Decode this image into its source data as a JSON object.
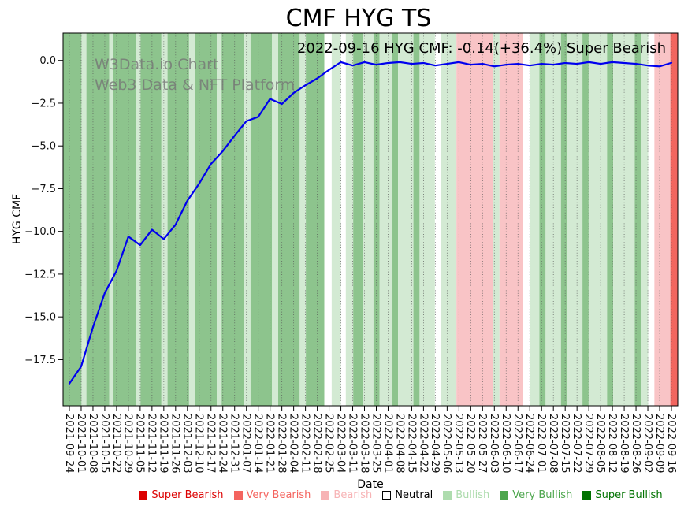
{
  "title": "CMF HYG TS",
  "watermark": {
    "line1": "W3Data.io Chart",
    "line2": "Web3 Data & NFT Platform"
  },
  "annotation": "2022-09-16 HYG CMF: -0.14(+36.4%) Super Bearish",
  "chart_data": {
    "type": "line",
    "title": "CMF HYG TS",
    "xlabel": "Date",
    "ylabel": "HYG CMF",
    "series_name": "HYG CMF",
    "line_color": "#0000ee",
    "grid": "vertical-dotted",
    "legend_position": "bottom",
    "ylim": [
      -20.2,
      1.6
    ],
    "yticks": [
      0.0,
      -2.5,
      -5.0,
      -7.5,
      -10.0,
      -12.5,
      -15.0,
      -17.5
    ],
    "ytick_labels": [
      "0.0",
      "−2.5",
      "−5.0",
      "−7.5",
      "−10.0",
      "−12.5",
      "−15.0",
      "−17.5"
    ],
    "x": [
      "2021-09-24",
      "2021-10-01",
      "2021-10-08",
      "2021-10-15",
      "2021-10-22",
      "2021-10-29",
      "2021-11-05",
      "2021-11-12",
      "2021-11-19",
      "2021-11-26",
      "2021-12-03",
      "2021-12-10",
      "2021-12-17",
      "2021-12-24",
      "2021-12-31",
      "2022-01-07",
      "2022-01-14",
      "2022-01-21",
      "2022-01-28",
      "2022-02-04",
      "2022-02-11",
      "2022-02-18",
      "2022-02-25",
      "2022-03-04",
      "2022-03-11",
      "2022-03-18",
      "2022-03-25",
      "2022-04-01",
      "2022-04-08",
      "2022-04-15",
      "2022-04-22",
      "2022-04-29",
      "2022-05-06",
      "2022-05-13",
      "2022-05-20",
      "2022-05-27",
      "2022-06-03",
      "2022-06-10",
      "2022-06-17",
      "2022-06-24",
      "2022-07-01",
      "2022-07-08",
      "2022-07-15",
      "2022-07-22",
      "2022-07-29",
      "2022-08-05",
      "2022-08-12",
      "2022-08-19",
      "2022-08-26",
      "2022-09-02",
      "2022-09-09",
      "2022-09-16"
    ],
    "values": [
      -18.9,
      -17.9,
      -15.6,
      -13.6,
      -12.3,
      -10.3,
      -10.8,
      -9.9,
      -10.45,
      -9.6,
      -8.2,
      -7.2,
      -6.05,
      -5.3,
      -4.4,
      -3.55,
      -3.3,
      -2.25,
      -2.55,
      -1.9,
      -1.45,
      -1.05,
      -0.55,
      -0.1,
      -0.3,
      -0.1,
      -0.25,
      -0.15,
      -0.1,
      -0.2,
      -0.15,
      -0.3,
      -0.2,
      -0.1,
      -0.25,
      -0.2,
      -0.35,
      -0.25,
      -0.2,
      -0.3,
      -0.2,
      -0.25,
      -0.15,
      -0.2,
      -0.1,
      -0.2,
      -0.1,
      -0.15,
      -0.2,
      -0.3,
      -0.35,
      -0.14
    ],
    "band_colors": {
      "super_bearish": "#e01e14",
      "very_bearish": "#f2655f",
      "bearish": "#f9c4c6",
      "neutral": "#ffffff",
      "bullish": "#d3ead3",
      "very_bullish": "#8dc48d",
      "super_bullish": "#2e8b2e"
    },
    "background_bands": [
      [
        0.0,
        0.03,
        "very_bullish"
      ],
      [
        0.03,
        0.038,
        "bullish"
      ],
      [
        0.038,
        0.075,
        "very_bullish"
      ],
      [
        0.075,
        0.082,
        "bullish"
      ],
      [
        0.082,
        0.118,
        "very_bullish"
      ],
      [
        0.118,
        0.126,
        "bullish"
      ],
      [
        0.126,
        0.16,
        "very_bullish"
      ],
      [
        0.16,
        0.17,
        "bullish"
      ],
      [
        0.17,
        0.205,
        "very_bullish"
      ],
      [
        0.205,
        0.215,
        "bullish"
      ],
      [
        0.215,
        0.25,
        "very_bullish"
      ],
      [
        0.25,
        0.258,
        "bullish"
      ],
      [
        0.258,
        0.295,
        "very_bullish"
      ],
      [
        0.295,
        0.305,
        "bullish"
      ],
      [
        0.305,
        0.34,
        "very_bullish"
      ],
      [
        0.34,
        0.35,
        "bullish"
      ],
      [
        0.35,
        0.385,
        "very_bullish"
      ],
      [
        0.385,
        0.395,
        "bullish"
      ],
      [
        0.395,
        0.425,
        "very_bullish"
      ],
      [
        0.425,
        0.437,
        "neutral"
      ],
      [
        0.437,
        0.452,
        "bullish"
      ],
      [
        0.452,
        0.46,
        "neutral"
      ],
      [
        0.46,
        0.472,
        "bullish"
      ],
      [
        0.472,
        0.488,
        "very_bullish"
      ],
      [
        0.488,
        0.505,
        "bullish"
      ],
      [
        0.505,
        0.515,
        "very_bullish"
      ],
      [
        0.515,
        0.535,
        "bullish"
      ],
      [
        0.535,
        0.545,
        "very_bullish"
      ],
      [
        0.545,
        0.57,
        "bullish"
      ],
      [
        0.57,
        0.58,
        "very_bullish"
      ],
      [
        0.58,
        0.605,
        "bullish"
      ],
      [
        0.605,
        0.615,
        "neutral"
      ],
      [
        0.615,
        0.64,
        "bullish"
      ],
      [
        0.64,
        0.7,
        "bearish"
      ],
      [
        0.7,
        0.71,
        "bullish"
      ],
      [
        0.71,
        0.748,
        "bearish"
      ],
      [
        0.748,
        0.76,
        "neutral"
      ],
      [
        0.76,
        0.775,
        "bullish"
      ],
      [
        0.775,
        0.785,
        "very_bullish"
      ],
      [
        0.785,
        0.81,
        "bullish"
      ],
      [
        0.81,
        0.82,
        "very_bullish"
      ],
      [
        0.82,
        0.845,
        "bullish"
      ],
      [
        0.845,
        0.855,
        "very_bullish"
      ],
      [
        0.855,
        0.885,
        "bullish"
      ],
      [
        0.885,
        0.895,
        "very_bullish"
      ],
      [
        0.895,
        0.93,
        "bullish"
      ],
      [
        0.93,
        0.94,
        "very_bullish"
      ],
      [
        0.94,
        0.952,
        "bullish"
      ],
      [
        0.952,
        0.962,
        "neutral"
      ],
      [
        0.962,
        0.988,
        "bearish"
      ],
      [
        0.988,
        1.0,
        "very_bearish"
      ]
    ],
    "legend": [
      {
        "label": "Super Bearish",
        "color": "#dc0000",
        "text_color": "#dc0000"
      },
      {
        "label": "Very Bearish",
        "color": "#f4645f",
        "text_color": "#f4645f"
      },
      {
        "label": "Bearish",
        "color": "#f7b3b5",
        "text_color": "#f7b3b5"
      },
      {
        "label": "Neutral",
        "color": "#ffffff",
        "border": "#000000",
        "text_color": "#000000"
      },
      {
        "label": "Bullish",
        "color": "#aedcae",
        "text_color": "#aedcae"
      },
      {
        "label": "Very Bullish",
        "color": "#4da64d",
        "text_color": "#4da64d"
      },
      {
        "label": "Super Bullish",
        "color": "#007200",
        "text_color": "#007200"
      }
    ]
  }
}
